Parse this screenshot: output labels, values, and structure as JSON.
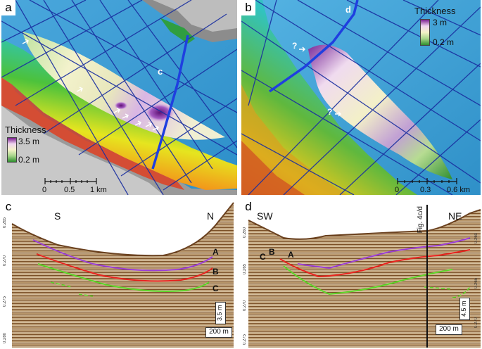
{
  "panels": {
    "a": {
      "letter": "a",
      "legend_title": "Thickness",
      "legend_max": "3.5 m",
      "legend_min": "0.2 m",
      "scale_ticks": [
        "0",
        "0.5",
        "1 km"
      ],
      "profile_label": "c"
    },
    "b": {
      "letter": "b",
      "legend_title": "Thickness",
      "legend_max": "3 m",
      "legend_min": "0.2 m",
      "scale_ticks": [
        "0",
        "0.3",
        "0.6 km"
      ],
      "profile_label": "d",
      "question_marks": [
        "?",
        "?"
      ]
    },
    "c": {
      "letter": "c",
      "dir_left": "S",
      "dir_right": "N",
      "horizons": [
        "A",
        "B",
        "C"
      ],
      "vertical_scale": "3.5 m",
      "horizontal_scale": "200 m",
      "axis_ticks": [
        "0.265",
        "0.270",
        "0.275",
        "0.280"
      ]
    },
    "d": {
      "letter": "d",
      "dir_left": "SW",
      "dir_right": "NE",
      "horizons": [
        "C",
        "B",
        "A"
      ],
      "vertical_scale": "4.5 m",
      "horizontal_scale": "200 m",
      "figure_ref": "Fig. 4c/d",
      "axis_ticks_right": [
        "0.260",
        "0.265",
        "0.270"
      ],
      "axis_ticks_left": [
        "0.260",
        "0.265",
        "0.270",
        "0.275"
      ]
    }
  },
  "colors": {
    "sea": "#3aa0d6",
    "track": "#1a2fa0",
    "horizon_a": "#9b3fd6",
    "horizon_b": "#e8231f",
    "horizon_c": "#5cd629"
  }
}
